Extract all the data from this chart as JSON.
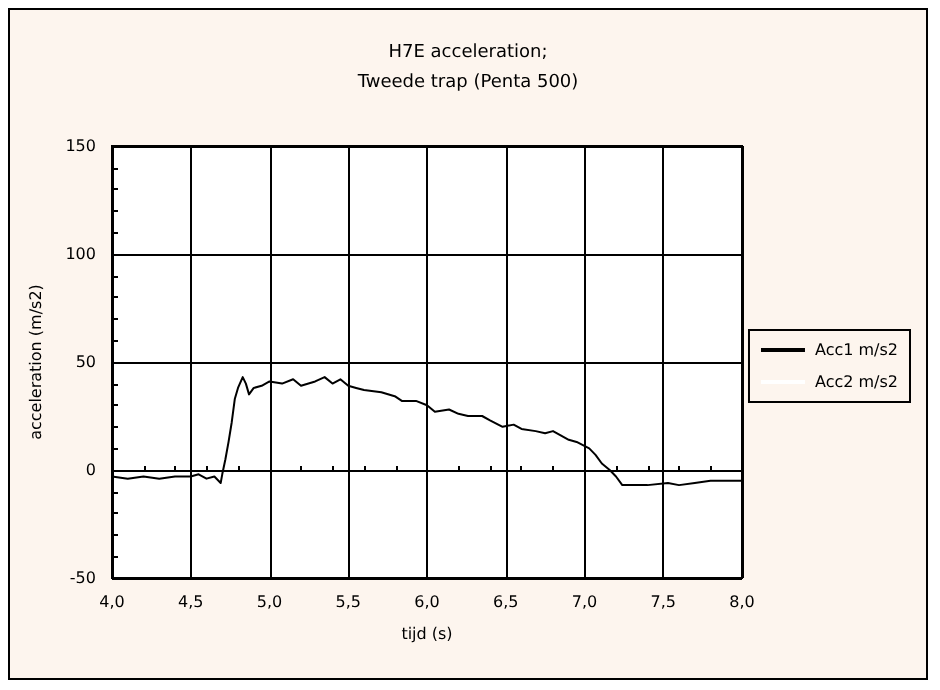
{
  "chart_data": {
    "type": "line",
    "title": "H7E acceleration;",
    "subtitle": "Tweede trap (Penta 500)",
    "xlabel": "tijd (s)",
    "ylabel": "acceleration (m/s2)",
    "xlim": [
      4,
      8
    ],
    "xticks": [
      {
        "value": 4,
        "label": "4,0"
      },
      {
        "value": 4.5,
        "label": "4,5"
      },
      {
        "value": 5,
        "label": "5,0"
      },
      {
        "value": 5.5,
        "label": "5,5"
      },
      {
        "value": 6,
        "label": "6,0"
      },
      {
        "value": 6.5,
        "label": "6,5"
      },
      {
        "value": 7,
        "label": "7,0"
      },
      {
        "value": 7.5,
        "label": "7,5"
      },
      {
        "value": 8,
        "label": "8,0"
      }
    ],
    "ylim": [
      -50,
      150
    ],
    "yticks": [
      -50,
      0,
      50,
      100,
      150
    ],
    "grid": true,
    "legend": "right",
    "marker": "none",
    "line_style": "solid",
    "series": [
      {
        "name": "Acc1 m/s2",
        "color": "#000000",
        "x": [
          4.0,
          4.1,
          4.2,
          4.3,
          4.4,
          4.5,
          4.55,
          4.6,
          4.65,
          4.69,
          4.7,
          4.72,
          4.74,
          4.76,
          4.78,
          4.8,
          4.83,
          4.85,
          4.87,
          4.9,
          4.95,
          5.0,
          5.08,
          5.15,
          5.2,
          5.29,
          5.35,
          5.4,
          5.45,
          5.5,
          5.55,
          5.6,
          5.71,
          5.8,
          5.84,
          5.93,
          6.0,
          6.05,
          6.14,
          6.2,
          6.26,
          6.35,
          6.4,
          6.48,
          6.55,
          6.6,
          6.69,
          6.75,
          6.8,
          6.9,
          6.95,
          7.03,
          7.07,
          7.11,
          7.16,
          7.2,
          7.24,
          7.3,
          7.4,
          7.53,
          7.6,
          7.7,
          7.8,
          7.9,
          7.96,
          8.0
        ],
        "values": [
          -3,
          -4,
          -3,
          -4,
          -3,
          -3,
          -2,
          -4,
          -3,
          -6,
          -2,
          5,
          13,
          22,
          33,
          38,
          43,
          40,
          35,
          38,
          39,
          41,
          40,
          42,
          39,
          41,
          43,
          40,
          42,
          39,
          38,
          37,
          36,
          34,
          32,
          32,
          30,
          27,
          28,
          26,
          25,
          25,
          23,
          20,
          21,
          19,
          18,
          17,
          18,
          14,
          13,
          10,
          7,
          3,
          0,
          -3,
          -7,
          -7,
          -7,
          -6,
          -7,
          -6,
          -5,
          -5,
          -5,
          -5
        ]
      },
      {
        "name": "Acc2 m/s2",
        "color": "#ffffff"
      }
    ]
  }
}
